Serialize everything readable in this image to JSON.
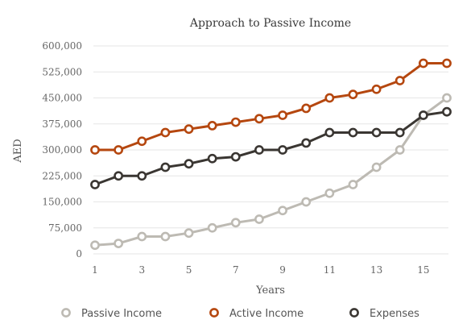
{
  "chart_data": {
    "type": "line",
    "title": "Approach to Passive Income",
    "xlabel": "Years",
    "ylabel": "AED",
    "x": [
      1,
      2,
      3,
      4,
      5,
      6,
      7,
      8,
      9,
      10,
      11,
      12,
      13,
      14,
      15,
      16
    ],
    "xticks": [
      1,
      3,
      5,
      7,
      9,
      11,
      13,
      15
    ],
    "xlim": [
      1,
      16
    ],
    "yticks": [
      0,
      75000,
      150000,
      225000,
      300000,
      375000,
      450000,
      525000,
      600000
    ],
    "ytick_labels": [
      "0",
      "75,000",
      "150,000",
      "225,000",
      "300,000",
      "375,000",
      "450,000",
      "525,000",
      "600,000"
    ],
    "ylim": [
      0,
      600000
    ],
    "grid": "horizontal",
    "legend_position": "bottom",
    "series": [
      {
        "name": "Passive Income",
        "color": "#bdbab3",
        "values": [
          25000,
          30000,
          50000,
          50000,
          60000,
          75000,
          90000,
          100000,
          125000,
          150000,
          175000,
          200000,
          250000,
          300000,
          400000,
          450000
        ]
      },
      {
        "name": "Active Income",
        "color": "#b5470f",
        "values": [
          300000,
          300000,
          325000,
          350000,
          360000,
          370000,
          380000,
          390000,
          400000,
          420000,
          450000,
          460000,
          475000,
          500000,
          550000,
          550000
        ]
      },
      {
        "name": "Expenses",
        "color": "#3a3632",
        "values": [
          200000,
          225000,
          225000,
          250000,
          260000,
          275000,
          280000,
          300000,
          300000,
          320000,
          350000,
          350000,
          350000,
          350000,
          400000,
          410000
        ]
      }
    ]
  }
}
